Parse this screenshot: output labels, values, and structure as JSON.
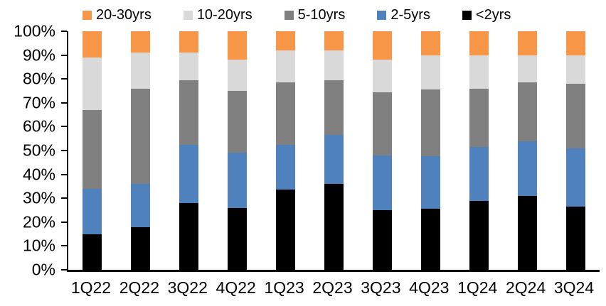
{
  "chart_data": {
    "type": "bar",
    "subtype": "stacked-100-percent",
    "title": "",
    "xlabel": "",
    "ylabel": "",
    "ylim": [
      0,
      100
    ],
    "grid": false,
    "legend_position": "top",
    "categories": [
      "1Q22",
      "2Q22",
      "3Q22",
      "4Q22",
      "1Q23",
      "2Q23",
      "3Q23",
      "4Q23",
      "1Q24",
      "2Q24",
      "3Q24"
    ],
    "y_tick_labels": [
      "0%",
      "10%",
      "20%",
      "30%",
      "40%",
      "50%",
      "60%",
      "70%",
      "80%",
      "90%",
      "100%"
    ],
    "series": [
      {
        "name": "<2yrs",
        "color": "#000000",
        "values": [
          15,
          18,
          28,
          26,
          33.5,
          36,
          25,
          25.5,
          29,
          31,
          26.5
        ]
      },
      {
        "name": "2-5yrs",
        "color": "#4F81BD",
        "values": [
          19,
          18,
          24.5,
          23,
          19,
          20.5,
          23,
          22,
          22.5,
          23,
          24.5
        ]
      },
      {
        "name": "5-10yrs",
        "color": "#808080",
        "values": [
          33,
          40,
          27,
          26,
          26,
          23,
          26.5,
          28,
          24.5,
          24.5,
          27
        ]
      },
      {
        "name": "10-20yrs",
        "color": "#D9D9D9",
        "values": [
          22,
          15,
          11.5,
          13,
          13.5,
          12.5,
          13.5,
          14.5,
          14,
          11.5,
          12
        ]
      },
      {
        "name": "20-30yrs",
        "color": "#F79646",
        "values": [
          11,
          9,
          9,
          12,
          8,
          8,
          12,
          10,
          10,
          10,
          10
        ]
      }
    ],
    "legend_order": [
      "20-30yrs",
      "10-20yrs",
      "5-10yrs",
      "2-5yrs",
      "<2yrs"
    ]
  }
}
